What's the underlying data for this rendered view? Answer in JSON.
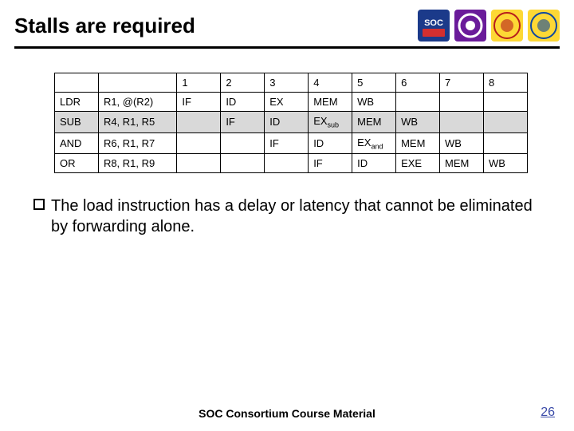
{
  "title": "Stalls are required",
  "logos": [
    {
      "bg": "#1b3a8a",
      "fg": "#ffffff",
      "text": "SOC"
    },
    {
      "bg": "#6a1b9a",
      "fg": "#ffffff",
      "shape": "gear"
    },
    {
      "bg": "#fdd835",
      "fg": "#b71c1c",
      "shape": "circle"
    },
    {
      "bg": "#fdd835",
      "fg": "#0d47a1",
      "shape": "circle"
    }
  ],
  "table": {
    "headers": [
      "",
      "",
      "1",
      "2",
      "3",
      "4",
      "5",
      "6",
      "7",
      "8"
    ],
    "rows": [
      {
        "inst": "LDR",
        "ops": "R1, @(R2)",
        "cells": [
          "IF",
          "ID",
          "EX",
          "MEM",
          "WB",
          "",
          "",
          ""
        ],
        "shaded": false
      },
      {
        "inst": "SUB",
        "ops": "R4, R1, R5",
        "cells": [
          "",
          "IF",
          "ID",
          "EX_sub",
          "MEM",
          "WB",
          "",
          ""
        ],
        "shaded": true
      },
      {
        "inst": "AND",
        "ops": "R6, R1, R7",
        "cells": [
          "",
          "",
          "IF",
          "ID",
          "EX_and",
          "MEM",
          "WB",
          ""
        ],
        "shaded": false
      },
      {
        "inst": "OR",
        "ops": "R8, R1, R9",
        "cells": [
          "",
          "",
          "",
          "IF",
          "ID",
          "EXE",
          "MEM",
          "WB"
        ],
        "shaded": false
      }
    ]
  },
  "body_text": "The load instruction has a delay or latency that cannot be eliminated by forwarding alone.",
  "footer": "SOC Consortium Course Material",
  "page_number": "26"
}
